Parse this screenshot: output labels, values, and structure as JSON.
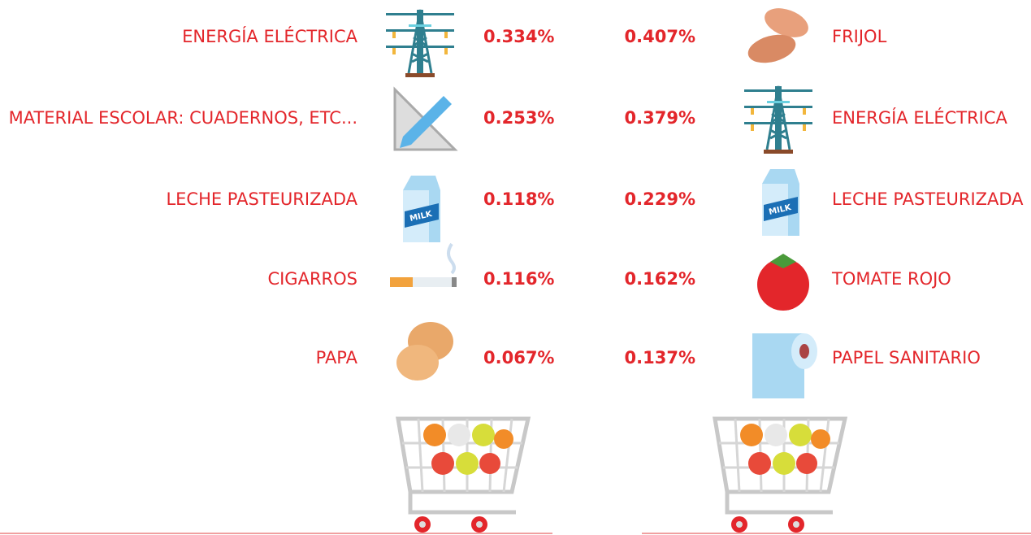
{
  "left": [
    {
      "label": "ENERGÍA ELÉCTRICA",
      "value": "0.334%"
    },
    {
      "label": "MATERIAL ESCOLAR: CUADERNOS, ETC...",
      "value": "0.253%"
    },
    {
      "label": "LECHE PASTEURIZADA",
      "value": "0.118%"
    },
    {
      "label": "CIGARROS",
      "value": "0.116%"
    },
    {
      "label": "PAPA",
      "value": "0.067%"
    }
  ],
  "right": [
    {
      "label": "FRIJOL",
      "value": "0.407%"
    },
    {
      "label": "ENERGÍA ELÉCTRICA",
      "value": "0.379%"
    },
    {
      "label": "LECHE PASTEURIZADA",
      "value": "0.229%"
    },
    {
      "label": "TOMATE ROJO",
      "value": "0.162%"
    },
    {
      "label": "PAPEL SANITARIO",
      "value": "0.137%"
    }
  ]
}
